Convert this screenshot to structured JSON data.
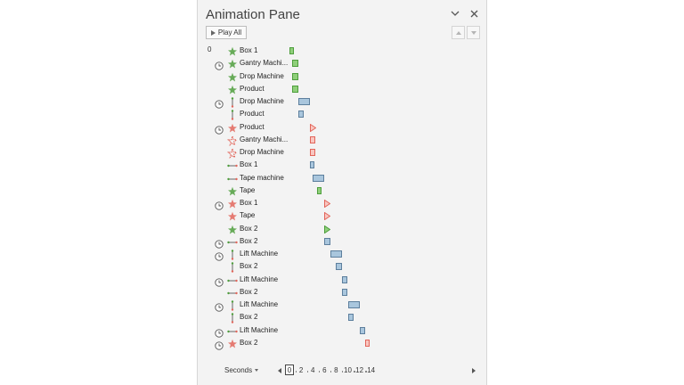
{
  "pane": {
    "title": "Animation Pane",
    "play_all_label": "Play All",
    "icons": {
      "options": "chevron-down-icon",
      "close": "close-icon",
      "move_up": "move-up-icon",
      "move_down": "move-down-icon"
    }
  },
  "colors": {
    "entrance": "#4e9e3c",
    "emphasis": "#5d7f9d",
    "exit": "#e2655a",
    "green_fill": "#8fcf7a",
    "blue_fill": "#a9c6dd",
    "red_fill": "#f8c6c0"
  },
  "items": [
    {
      "num": "0",
      "clock": false,
      "icon": "entrance-star-icon",
      "label": "Box 1",
      "bar": "green",
      "start": 0,
      "dur": 0.5
    },
    {
      "num": "",
      "clock": true,
      "icon": "entrance-star-icon",
      "label": "Gantry Machi...",
      "bar": "green",
      "start": 0.5,
      "dur": 1
    },
    {
      "num": "",
      "clock": false,
      "icon": "entrance-star-icon",
      "label": "Drop Machine",
      "bar": "green",
      "start": 0.5,
      "dur": 1
    },
    {
      "num": "",
      "clock": false,
      "icon": "entrance-star-icon",
      "label": "Product",
      "bar": "green",
      "start": 0.5,
      "dur": 1
    },
    {
      "num": "",
      "clock": true,
      "icon": "motion-path-vertical-icon",
      "label": "Drop Machine",
      "bar": "blue",
      "start": 1.5,
      "dur": 2
    },
    {
      "num": "",
      "clock": false,
      "icon": "motion-path-vertical-icon",
      "label": "Product",
      "bar": "blue",
      "start": 1.5,
      "dur": 1
    },
    {
      "num": "",
      "clock": true,
      "icon": "exit-star-icon",
      "label": "Product",
      "bar": "red-tri",
      "start": 3.5,
      "dur": 0
    },
    {
      "num": "",
      "clock": false,
      "icon": "exit-fade-icon",
      "label": "Gantry Machi...",
      "bar": "red",
      "start": 3.5,
      "dur": 1
    },
    {
      "num": "",
      "clock": false,
      "icon": "exit-fade-icon",
      "label": "Drop Machine",
      "bar": "red",
      "start": 3.5,
      "dur": 1
    },
    {
      "num": "",
      "clock": false,
      "icon": "motion-path-horizontal-icon",
      "label": "Box 1",
      "bar": "blue",
      "start": 3.5,
      "dur": 0.5
    },
    {
      "num": "",
      "clock": false,
      "icon": "motion-path-horizontal-icon",
      "label": "Tape machine",
      "bar": "blue",
      "start": 4,
      "dur": 2
    },
    {
      "num": "",
      "clock": false,
      "icon": "entrance-star-icon",
      "label": "Tape",
      "bar": "green",
      "start": 4.75,
      "dur": 0.25
    },
    {
      "num": "",
      "clock": true,
      "icon": "exit-star-icon",
      "label": "Box 1",
      "bar": "red-tri",
      "start": 6,
      "dur": 0
    },
    {
      "num": "",
      "clock": false,
      "icon": "exit-star-icon",
      "label": "Tape",
      "bar": "red-tri",
      "start": 6,
      "dur": 0
    },
    {
      "num": "",
      "clock": false,
      "icon": "entrance-star-icon",
      "label": "Box 2",
      "bar": "green-tri",
      "start": 6,
      "dur": 0
    },
    {
      "num": "",
      "clock": true,
      "icon": "motion-path-horizontal-icon",
      "label": "Box 2",
      "bar": "blue",
      "start": 6,
      "dur": 1
    },
    {
      "num": "",
      "clock": true,
      "icon": "motion-path-vertical-icon",
      "label": "Lift Machine",
      "bar": "blue",
      "start": 7,
      "dur": 2
    },
    {
      "num": "",
      "clock": false,
      "icon": "motion-path-vertical-icon",
      "label": "Box 2",
      "bar": "blue",
      "start": 8,
      "dur": 1
    },
    {
      "num": "",
      "clock": true,
      "icon": "motion-path-horizontal-icon",
      "label": "Lift Machine",
      "bar": "blue",
      "start": 9,
      "dur": 1
    },
    {
      "num": "",
      "clock": false,
      "icon": "motion-path-horizontal-icon",
      "label": "Box 2",
      "bar": "blue",
      "start": 9,
      "dur": 1
    },
    {
      "num": "",
      "clock": true,
      "icon": "motion-path-vertical-icon",
      "label": "Lift Machine",
      "bar": "blue",
      "start": 10,
      "dur": 2
    },
    {
      "num": "",
      "clock": false,
      "icon": "motion-path-vertical-icon",
      "label": "Box 2",
      "bar": "blue",
      "start": 10,
      "dur": 1
    },
    {
      "num": "",
      "clock": true,
      "icon": "motion-path-horizontal-icon",
      "label": "Lift Machine",
      "bar": "blue",
      "start": 12,
      "dur": 1
    },
    {
      "num": "",
      "clock": true,
      "icon": "exit-star-icon",
      "label": "Box 2",
      "bar": "red",
      "start": 13,
      "dur": 0.5
    }
  ],
  "timeline": {
    "units_label": "Seconds",
    "ticks": [
      "0",
      "2",
      "4",
      "6",
      "8",
      "10",
      "12",
      "14"
    ]
  }
}
